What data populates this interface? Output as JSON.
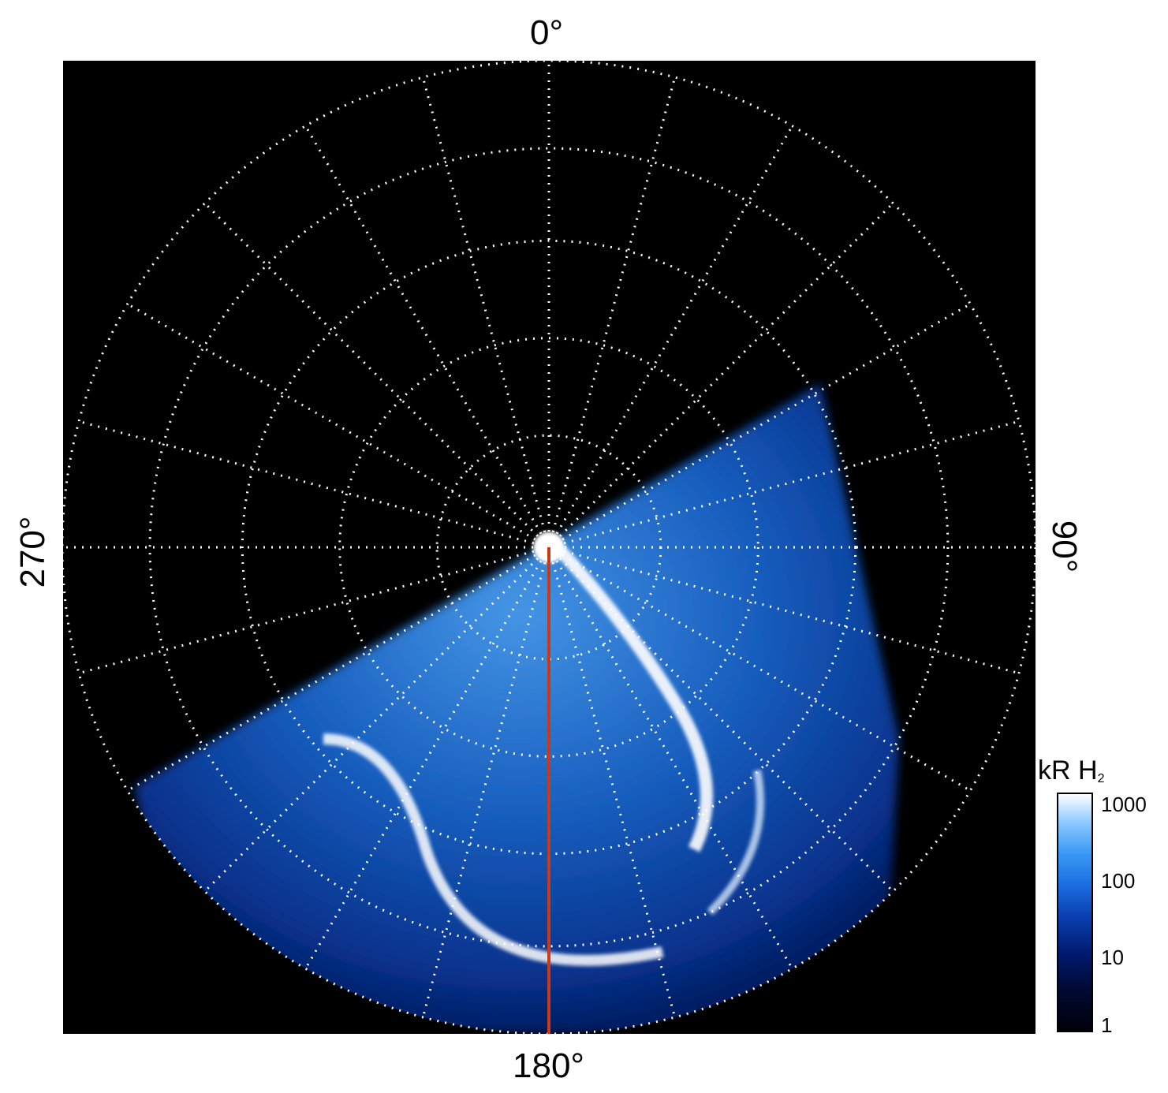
{
  "figure": {
    "title": "",
    "longitude_labels": {
      "top": "0°",
      "right": "90°",
      "bottom": "180°",
      "left": "270°"
    },
    "colorbar": {
      "title_text": "kR H",
      "title_subscript": "2",
      "scale": "log",
      "tick_labels": [
        "1",
        "10",
        "100",
        "1000"
      ],
      "colormap_hex": [
        "#00000a",
        "#001a70",
        "#1b6fe0",
        "#8cc9ff",
        "#ffffff"
      ]
    },
    "colors": {
      "background": "#000000",
      "grid": "#ffffff",
      "meridian_marker": "#c83a1a"
    },
    "grid": {
      "style": "dotted",
      "meridian_spacing_deg": 15,
      "latitude_rings": 5
    }
  }
}
